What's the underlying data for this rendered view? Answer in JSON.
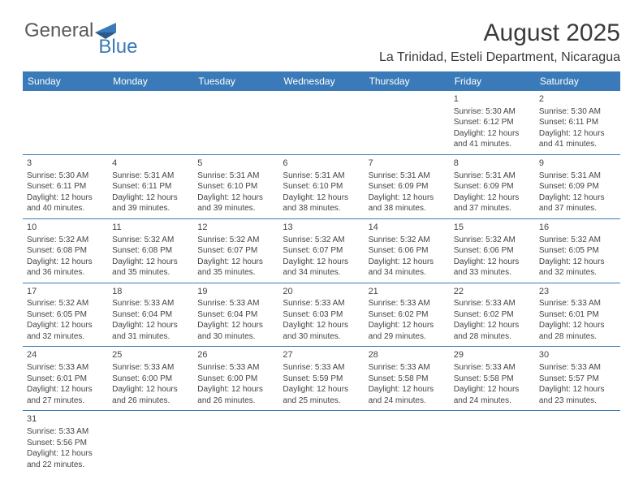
{
  "logo": {
    "part1": "General",
    "part2": "Blue"
  },
  "title": "August 2025",
  "location": "La Trinidad, Esteli Department, Nicaragua",
  "dayNames": [
    "Sunday",
    "Monday",
    "Tuesday",
    "Wednesday",
    "Thursday",
    "Friday",
    "Saturday"
  ],
  "colors": {
    "headerBg": "#3a7ab8",
    "headerText": "#ffffff",
    "borderColor": "#3a7ab8",
    "textColor": "#444444",
    "logoGray": "#5a5a5a",
    "logoBlue": "#3a7ab8",
    "pageBg": "#ffffff"
  },
  "typography": {
    "title_fontsize": 30,
    "location_fontsize": 16,
    "logo_fontsize": 24,
    "dayheader_fontsize": 12,
    "daynum_fontsize": 11,
    "cell_fontsize": 10
  },
  "weeks": [
    [
      {
        "num": "",
        "lines": []
      },
      {
        "num": "",
        "lines": []
      },
      {
        "num": "",
        "lines": []
      },
      {
        "num": "",
        "lines": []
      },
      {
        "num": "",
        "lines": []
      },
      {
        "num": "1",
        "lines": [
          "Sunrise: 5:30 AM",
          "Sunset: 6:12 PM",
          "Daylight: 12 hours",
          "and 41 minutes."
        ]
      },
      {
        "num": "2",
        "lines": [
          "Sunrise: 5:30 AM",
          "Sunset: 6:11 PM",
          "Daylight: 12 hours",
          "and 41 minutes."
        ]
      }
    ],
    [
      {
        "num": "3",
        "lines": [
          "Sunrise: 5:30 AM",
          "Sunset: 6:11 PM",
          "Daylight: 12 hours",
          "and 40 minutes."
        ]
      },
      {
        "num": "4",
        "lines": [
          "Sunrise: 5:31 AM",
          "Sunset: 6:11 PM",
          "Daylight: 12 hours",
          "and 39 minutes."
        ]
      },
      {
        "num": "5",
        "lines": [
          "Sunrise: 5:31 AM",
          "Sunset: 6:10 PM",
          "Daylight: 12 hours",
          "and 39 minutes."
        ]
      },
      {
        "num": "6",
        "lines": [
          "Sunrise: 5:31 AM",
          "Sunset: 6:10 PM",
          "Daylight: 12 hours",
          "and 38 minutes."
        ]
      },
      {
        "num": "7",
        "lines": [
          "Sunrise: 5:31 AM",
          "Sunset: 6:09 PM",
          "Daylight: 12 hours",
          "and 38 minutes."
        ]
      },
      {
        "num": "8",
        "lines": [
          "Sunrise: 5:31 AM",
          "Sunset: 6:09 PM",
          "Daylight: 12 hours",
          "and 37 minutes."
        ]
      },
      {
        "num": "9",
        "lines": [
          "Sunrise: 5:31 AM",
          "Sunset: 6:09 PM",
          "Daylight: 12 hours",
          "and 37 minutes."
        ]
      }
    ],
    [
      {
        "num": "10",
        "lines": [
          "Sunrise: 5:32 AM",
          "Sunset: 6:08 PM",
          "Daylight: 12 hours",
          "and 36 minutes."
        ]
      },
      {
        "num": "11",
        "lines": [
          "Sunrise: 5:32 AM",
          "Sunset: 6:08 PM",
          "Daylight: 12 hours",
          "and 35 minutes."
        ]
      },
      {
        "num": "12",
        "lines": [
          "Sunrise: 5:32 AM",
          "Sunset: 6:07 PM",
          "Daylight: 12 hours",
          "and 35 minutes."
        ]
      },
      {
        "num": "13",
        "lines": [
          "Sunrise: 5:32 AM",
          "Sunset: 6:07 PM",
          "Daylight: 12 hours",
          "and 34 minutes."
        ]
      },
      {
        "num": "14",
        "lines": [
          "Sunrise: 5:32 AM",
          "Sunset: 6:06 PM",
          "Daylight: 12 hours",
          "and 34 minutes."
        ]
      },
      {
        "num": "15",
        "lines": [
          "Sunrise: 5:32 AM",
          "Sunset: 6:06 PM",
          "Daylight: 12 hours",
          "and 33 minutes."
        ]
      },
      {
        "num": "16",
        "lines": [
          "Sunrise: 5:32 AM",
          "Sunset: 6:05 PM",
          "Daylight: 12 hours",
          "and 32 minutes."
        ]
      }
    ],
    [
      {
        "num": "17",
        "lines": [
          "Sunrise: 5:32 AM",
          "Sunset: 6:05 PM",
          "Daylight: 12 hours",
          "and 32 minutes."
        ]
      },
      {
        "num": "18",
        "lines": [
          "Sunrise: 5:33 AM",
          "Sunset: 6:04 PM",
          "Daylight: 12 hours",
          "and 31 minutes."
        ]
      },
      {
        "num": "19",
        "lines": [
          "Sunrise: 5:33 AM",
          "Sunset: 6:04 PM",
          "Daylight: 12 hours",
          "and 30 minutes."
        ]
      },
      {
        "num": "20",
        "lines": [
          "Sunrise: 5:33 AM",
          "Sunset: 6:03 PM",
          "Daylight: 12 hours",
          "and 30 minutes."
        ]
      },
      {
        "num": "21",
        "lines": [
          "Sunrise: 5:33 AM",
          "Sunset: 6:02 PM",
          "Daylight: 12 hours",
          "and 29 minutes."
        ]
      },
      {
        "num": "22",
        "lines": [
          "Sunrise: 5:33 AM",
          "Sunset: 6:02 PM",
          "Daylight: 12 hours",
          "and 28 minutes."
        ]
      },
      {
        "num": "23",
        "lines": [
          "Sunrise: 5:33 AM",
          "Sunset: 6:01 PM",
          "Daylight: 12 hours",
          "and 28 minutes."
        ]
      }
    ],
    [
      {
        "num": "24",
        "lines": [
          "Sunrise: 5:33 AM",
          "Sunset: 6:01 PM",
          "Daylight: 12 hours",
          "and 27 minutes."
        ]
      },
      {
        "num": "25",
        "lines": [
          "Sunrise: 5:33 AM",
          "Sunset: 6:00 PM",
          "Daylight: 12 hours",
          "and 26 minutes."
        ]
      },
      {
        "num": "26",
        "lines": [
          "Sunrise: 5:33 AM",
          "Sunset: 6:00 PM",
          "Daylight: 12 hours",
          "and 26 minutes."
        ]
      },
      {
        "num": "27",
        "lines": [
          "Sunrise: 5:33 AM",
          "Sunset: 5:59 PM",
          "Daylight: 12 hours",
          "and 25 minutes."
        ]
      },
      {
        "num": "28",
        "lines": [
          "Sunrise: 5:33 AM",
          "Sunset: 5:58 PM",
          "Daylight: 12 hours",
          "and 24 minutes."
        ]
      },
      {
        "num": "29",
        "lines": [
          "Sunrise: 5:33 AM",
          "Sunset: 5:58 PM",
          "Daylight: 12 hours",
          "and 24 minutes."
        ]
      },
      {
        "num": "30",
        "lines": [
          "Sunrise: 5:33 AM",
          "Sunset: 5:57 PM",
          "Daylight: 12 hours",
          "and 23 minutes."
        ]
      }
    ],
    [
      {
        "num": "31",
        "lines": [
          "Sunrise: 5:33 AM",
          "Sunset: 5:56 PM",
          "Daylight: 12 hours",
          "and 22 minutes."
        ]
      },
      {
        "num": "",
        "lines": []
      },
      {
        "num": "",
        "lines": []
      },
      {
        "num": "",
        "lines": []
      },
      {
        "num": "",
        "lines": []
      },
      {
        "num": "",
        "lines": []
      },
      {
        "num": "",
        "lines": []
      }
    ]
  ]
}
